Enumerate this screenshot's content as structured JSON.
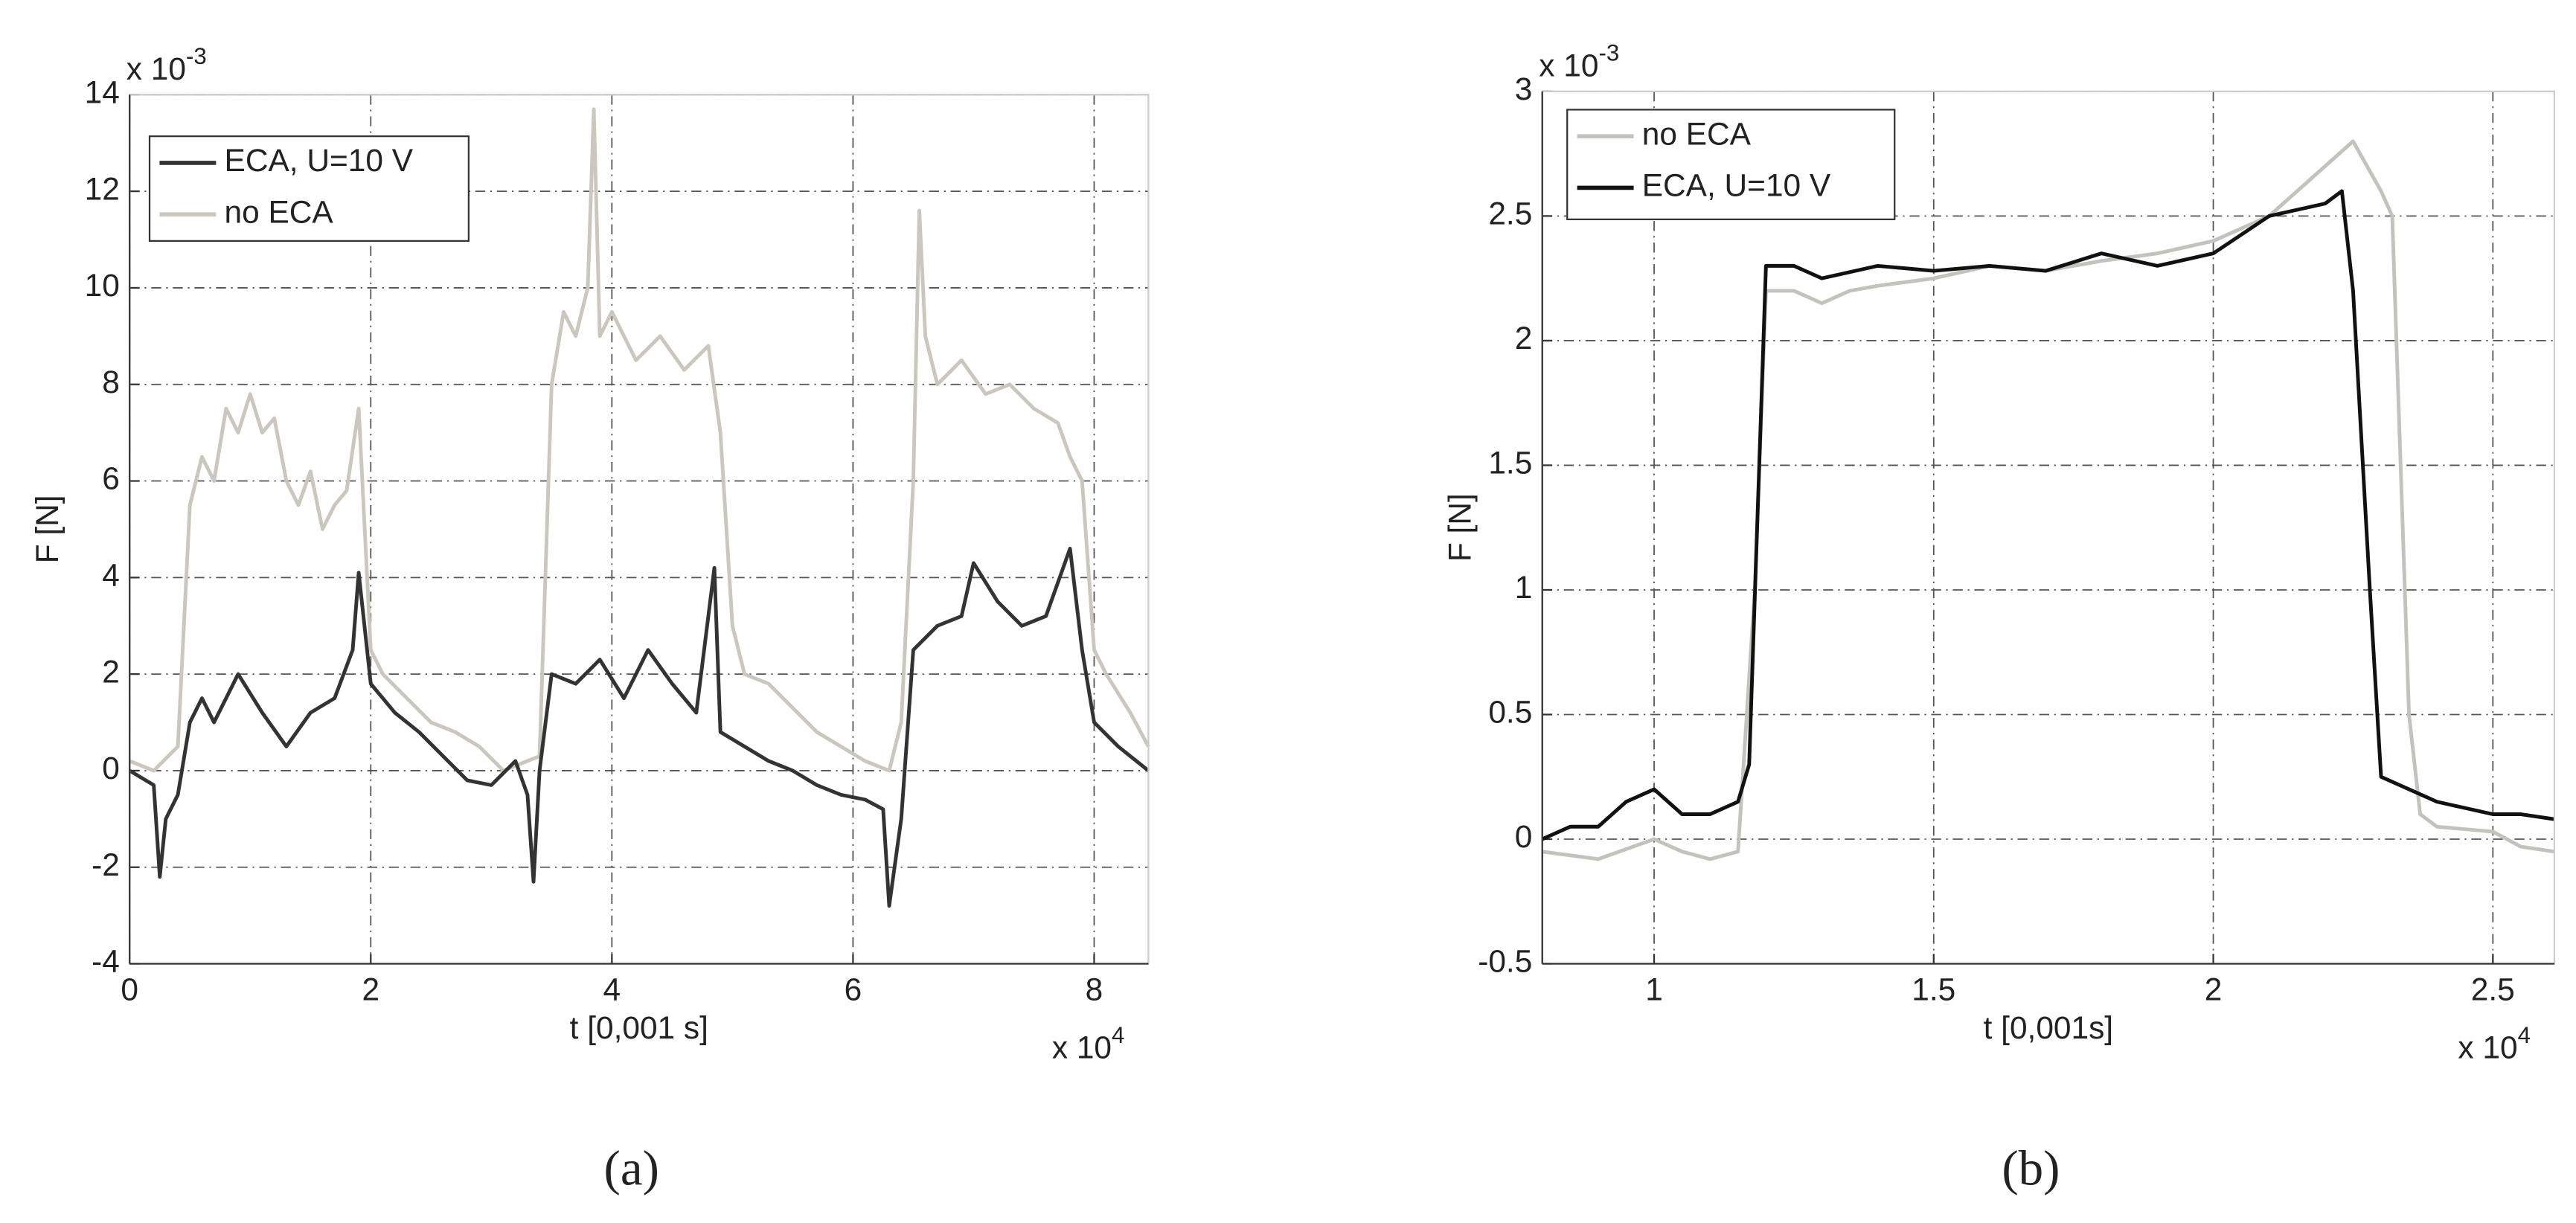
{
  "chart_data": [
    {
      "type": "line",
      "panel_label": "(a)",
      "xlabel": "t [0,001 s]",
      "ylabel": "F [N]",
      "x_multiplier": {
        "base": "x 10",
        "exponent": "4"
      },
      "y_multiplier": {
        "base": "x 10",
        "exponent": "-3"
      },
      "xlim": [
        0,
        8.45
      ],
      "ylim": [
        -4,
        14
      ],
      "xticks": [
        0,
        2,
        4,
        6,
        8
      ],
      "yticks": [
        -4,
        -2,
        0,
        2,
        4,
        6,
        8,
        10,
        12,
        14
      ],
      "grid": true,
      "legend": "upper left",
      "series": [
        {
          "name": "no ECA",
          "color": "#cbc7bf",
          "x": [
            0,
            0.2,
            0.4,
            0.5,
            0.6,
            0.7,
            0.8,
            0.9,
            1.0,
            1.1,
            1.2,
            1.3,
            1.4,
            1.5,
            1.6,
            1.7,
            1.8,
            1.9,
            2.0,
            2.1,
            2.3,
            2.5,
            2.7,
            2.9,
            3.1,
            3.3,
            3.4,
            3.5,
            3.6,
            3.7,
            3.8,
            3.85,
            3.9,
            4.0,
            4.2,
            4.4,
            4.6,
            4.8,
            4.9,
            5.0,
            5.1,
            5.3,
            5.5,
            5.7,
            5.9,
            6.1,
            6.3,
            6.4,
            6.5,
            6.55,
            6.6,
            6.7,
            6.9,
            7.1,
            7.3,
            7.5,
            7.7,
            7.8,
            7.9,
            8.0,
            8.1,
            8.3,
            8.45
          ],
          "values": [
            0.2,
            0,
            0.5,
            5.5,
            6.5,
            6,
            7.5,
            7,
            7.8,
            7,
            7.3,
            6,
            5.5,
            6.2,
            5,
            5.5,
            5.8,
            7.5,
            2.5,
            2,
            1.5,
            1,
            0.8,
            0.5,
            0,
            0.2,
            0.3,
            8,
            9.5,
            9,
            10,
            13.7,
            9,
            9.5,
            8.5,
            9,
            8.3,
            8.8,
            7,
            3,
            2,
            1.8,
            1.3,
            0.8,
            0.5,
            0.2,
            0,
            1,
            6,
            11.6,
            9,
            8,
            8.5,
            7.8,
            8,
            7.5,
            7.2,
            6.5,
            6,
            2.5,
            2,
            1.2,
            0.5
          ]
        },
        {
          "name": "ECA, U=10 V",
          "color": "#333333",
          "x": [
            0,
            0.2,
            0.25,
            0.3,
            0.4,
            0.5,
            0.6,
            0.7,
            0.9,
            1.1,
            1.3,
            1.5,
            1.7,
            1.85,
            1.9,
            2.0,
            2.2,
            2.4,
            2.6,
            2.8,
            3.0,
            3.2,
            3.3,
            3.35,
            3.4,
            3.5,
            3.7,
            3.9,
            4.1,
            4.3,
            4.5,
            4.7,
            4.85,
            4.9,
            5.1,
            5.3,
            5.5,
            5.7,
            5.9,
            6.1,
            6.25,
            6.3,
            6.4,
            6.5,
            6.7,
            6.9,
            7.0,
            7.2,
            7.4,
            7.6,
            7.8,
            7.9,
            8.0,
            8.2,
            8.45
          ],
          "values": [
            0,
            -0.3,
            -2.2,
            -1,
            -0.5,
            1,
            1.5,
            1,
            2,
            1.2,
            0.5,
            1.2,
            1.5,
            2.5,
            4.1,
            1.8,
            1.2,
            0.8,
            0.3,
            -0.2,
            -0.3,
            0.2,
            -0.5,
            -2.3,
            0,
            2,
            1.8,
            2.3,
            1.5,
            2.5,
            1.8,
            1.2,
            4.2,
            0.8,
            0.5,
            0.2,
            0,
            -0.3,
            -0.5,
            -0.6,
            -0.8,
            -2.8,
            -1,
            2.5,
            3,
            3.2,
            4.3,
            3.5,
            3,
            3.2,
            4.6,
            2.5,
            1,
            0.5,
            0
          ]
        }
      ],
      "legend_order": [
        1,
        0
      ]
    },
    {
      "type": "line",
      "panel_label": "(b)",
      "xlabel": "t [0,001s]",
      "ylabel": "F [N]",
      "x_multiplier": {
        "base": "x 10",
        "exponent": "4"
      },
      "y_multiplier": {
        "base": "x 10",
        "exponent": "-3"
      },
      "xlim": [
        0.8,
        2.61
      ],
      "ylim": [
        -0.5,
        3
      ],
      "xticks": [
        1,
        1.5,
        2,
        2.5
      ],
      "yticks": [
        -0.5,
        0,
        0.5,
        1,
        1.5,
        2,
        2.5,
        3
      ],
      "grid": true,
      "legend": "upper left",
      "series": [
        {
          "name": "no ECA",
          "color": "#c4c2bc",
          "x": [
            0.8,
            0.9,
            1.0,
            1.05,
            1.1,
            1.15,
            1.18,
            1.2,
            1.25,
            1.3,
            1.35,
            1.4,
            1.5,
            1.6,
            1.7,
            1.8,
            1.9,
            2.0,
            2.1,
            2.2,
            2.25,
            2.3,
            2.32,
            2.35,
            2.37,
            2.4,
            2.5,
            2.55,
            2.61
          ],
          "values": [
            -0.05,
            -0.08,
            0,
            -0.05,
            -0.08,
            -0.05,
            1,
            2.2,
            2.2,
            2.15,
            2.2,
            2.22,
            2.25,
            2.3,
            2.28,
            2.32,
            2.35,
            2.4,
            2.5,
            2.7,
            2.8,
            2.6,
            2.5,
            0.5,
            0.1,
            0.05,
            0.03,
            -0.03,
            -0.05
          ]
        },
        {
          "name": "ECA, U=10 V",
          "color": "#111111",
          "x": [
            0.8,
            0.85,
            0.9,
            0.95,
            1.0,
            1.05,
            1.1,
            1.15,
            1.17,
            1.2,
            1.25,
            1.3,
            1.4,
            1.5,
            1.6,
            1.7,
            1.8,
            1.9,
            2.0,
            2.1,
            2.2,
            2.23,
            2.25,
            2.28,
            2.3,
            2.35,
            2.4,
            2.5,
            2.55,
            2.61
          ],
          "values": [
            0,
            0.05,
            0.05,
            0.15,
            0.2,
            0.1,
            0.1,
            0.15,
            0.3,
            2.3,
            2.3,
            2.25,
            2.3,
            2.28,
            2.3,
            2.28,
            2.35,
            2.3,
            2.35,
            2.5,
            2.55,
            2.6,
            2.2,
            1,
            0.25,
            0.2,
            0.15,
            0.1,
            0.1,
            0.08
          ]
        }
      ],
      "legend_order": [
        0,
        1
      ]
    }
  ]
}
